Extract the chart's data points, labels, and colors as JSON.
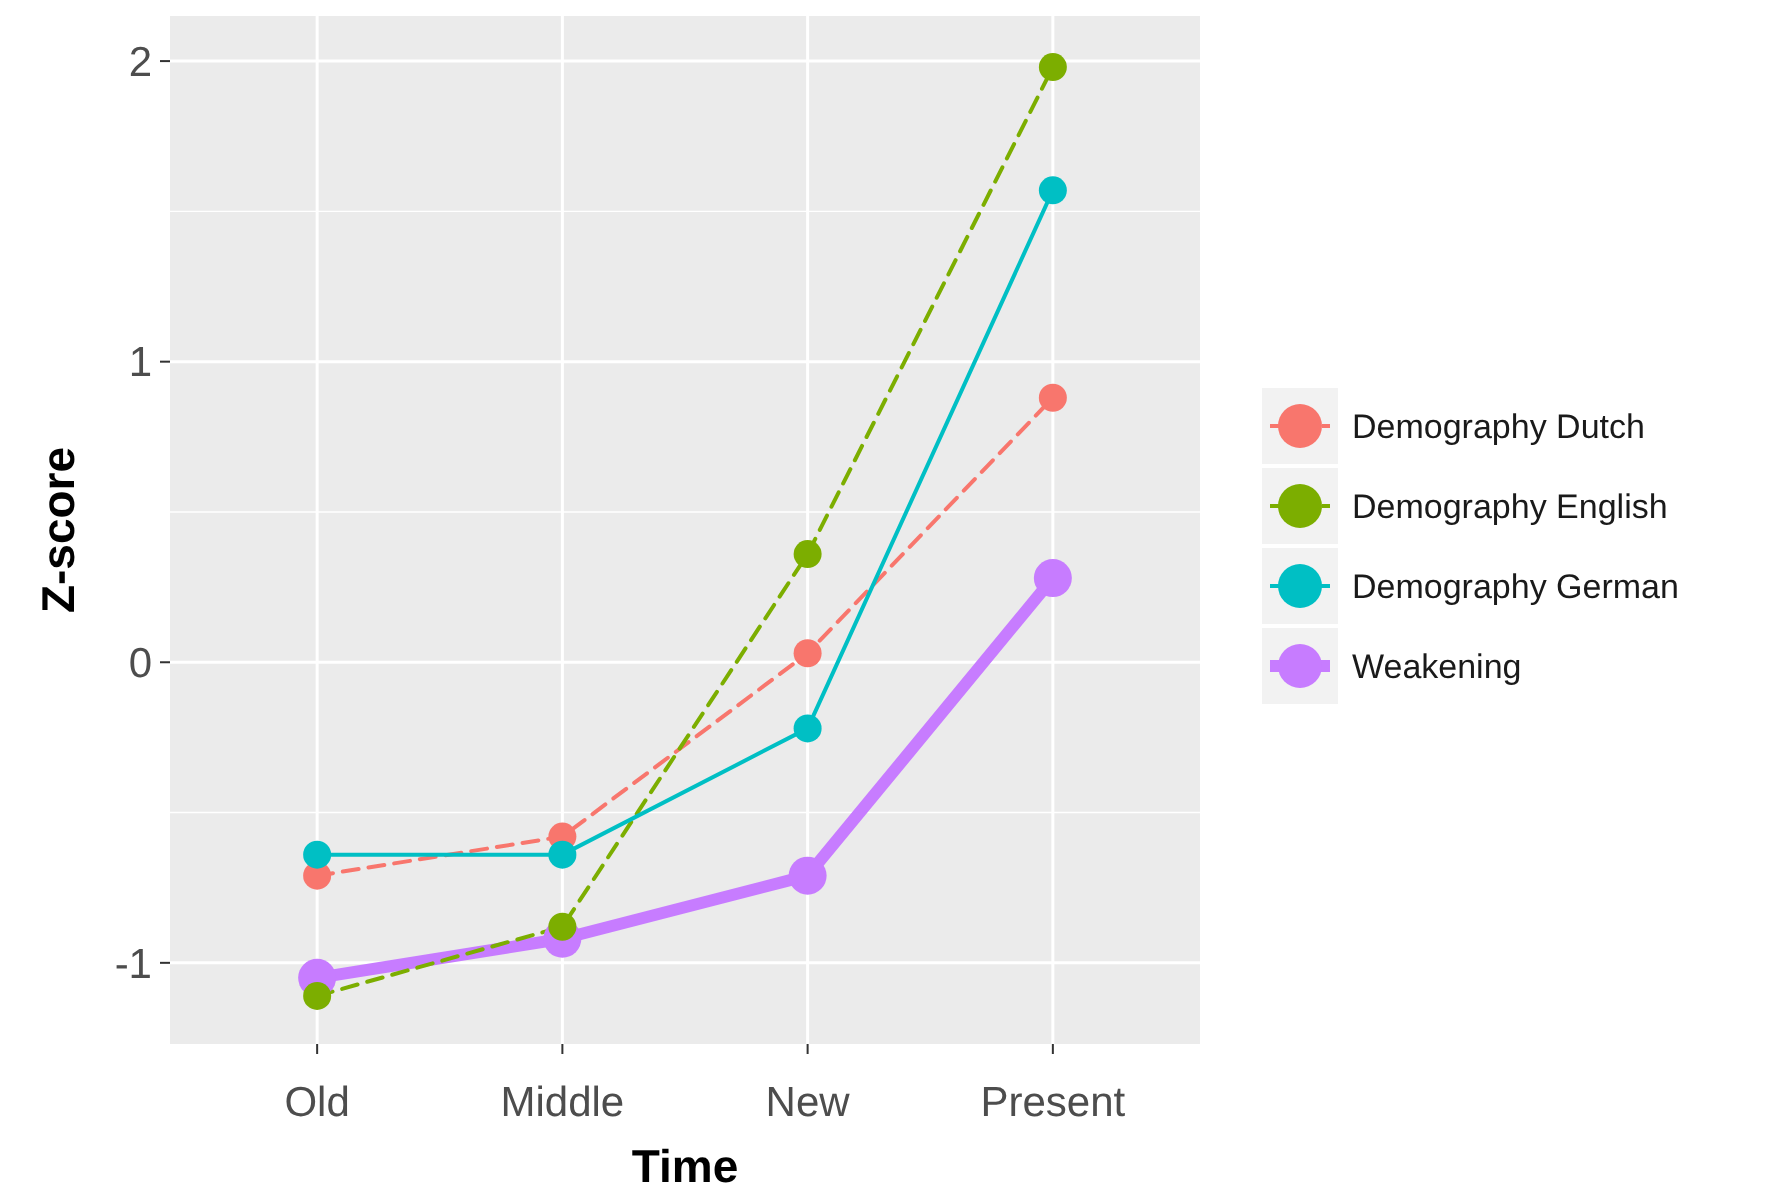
{
  "chart_data": {
    "type": "line",
    "xlabel": "Time",
    "ylabel": "Z-score",
    "categories": [
      "Old",
      "Middle",
      "New",
      "Present"
    ],
    "series": [
      {
        "name": "Demography Dutch",
        "color": "#f8766d",
        "line_style": "dashed",
        "values": [
          -0.71,
          -0.58,
          0.03,
          0.88
        ]
      },
      {
        "name": "Demography English",
        "color": "#7cae00",
        "line_style": "dashed",
        "values": [
          -1.11,
          -0.88,
          0.36,
          1.98
        ]
      },
      {
        "name": "Demography German",
        "color": "#00bfc4",
        "line_style": "solid",
        "values": [
          -0.64,
          -0.64,
          -0.22,
          1.57
        ]
      },
      {
        "name": "Weakening",
        "color": "#c77cff",
        "line_style": "solid",
        "values": [
          -1.05,
          -0.92,
          -0.71,
          0.28
        ]
      }
    ],
    "ylim": [
      -1.27,
      2.15
    ],
    "yticks": [
      -1,
      0,
      1,
      2
    ],
    "grid": true,
    "legend": "right",
    "marker": "circle"
  }
}
